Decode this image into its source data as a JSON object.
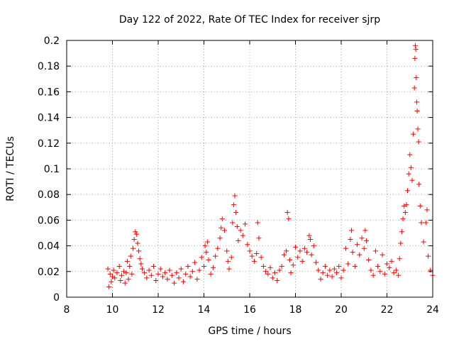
{
  "chart_data": {
    "type": "scatter",
    "title": "Day 122 of 2022, Rate Of TEC Index for receiver sjrp",
    "xlabel": "GPS time / hours",
    "ylabel": "ROTI / TECUs",
    "xlim": [
      8,
      24
    ],
    "ylim": [
      0,
      0.2
    ],
    "x_ticks": [
      8,
      10,
      12,
      14,
      16,
      18,
      20,
      22,
      24
    ],
    "x_tick_labels": [
      "8",
      "10",
      "12",
      "14",
      "16",
      "18",
      "20",
      "22",
      "24"
    ],
    "y_ticks": [
      0,
      0.02,
      0.04,
      0.06,
      0.08,
      0.1,
      0.12,
      0.14,
      0.16,
      0.18,
      0.2
    ],
    "y_tick_labels": [
      "0",
      "0.02",
      "0.04",
      "0.06",
      "0.08",
      "0.1",
      "0.12",
      "0.14",
      "0.16",
      "0.18",
      "0.2"
    ],
    "grid": true,
    "marker": "+",
    "color": "#ff0000",
    "series": [
      {
        "name": "ROTI",
        "points": [
          [
            9.8,
            0.022
          ],
          [
            9.85,
            0.008
          ],
          [
            9.9,
            0.018
          ],
          [
            9.95,
            0.012
          ],
          [
            10.0,
            0.016
          ],
          [
            10.05,
            0.021
          ],
          [
            10.1,
            0.015
          ],
          [
            10.2,
            0.019
          ],
          [
            10.3,
            0.024
          ],
          [
            10.35,
            0.013
          ],
          [
            10.4,
            0.017
          ],
          [
            10.5,
            0.02
          ],
          [
            10.55,
            0.011
          ],
          [
            10.6,
            0.019
          ],
          [
            10.65,
            0.028
          ],
          [
            10.7,
            0.014
          ],
          [
            10.75,
            0.024
          ],
          [
            10.8,
            0.032
          ],
          [
            10.85,
            0.018
          ],
          [
            10.9,
            0.038
          ],
          [
            10.95,
            0.045
          ],
          [
            11.0,
            0.051
          ],
          [
            11.05,
            0.049
          ],
          [
            11.1,
            0.042
          ],
          [
            11.15,
            0.036
          ],
          [
            11.2,
            0.03
          ],
          [
            11.25,
            0.026
          ],
          [
            11.3,
            0.022
          ],
          [
            11.4,
            0.019
          ],
          [
            11.5,
            0.015
          ],
          [
            11.6,
            0.021
          ],
          [
            11.7,
            0.017
          ],
          [
            11.8,
            0.024
          ],
          [
            11.9,
            0.013
          ],
          [
            12.0,
            0.018
          ],
          [
            12.1,
            0.022
          ],
          [
            12.2,
            0.016
          ],
          [
            12.3,
            0.019
          ],
          [
            12.4,
            0.014
          ],
          [
            12.5,
            0.021
          ],
          [
            12.6,
            0.017
          ],
          [
            12.7,
            0.011
          ],
          [
            12.8,
            0.019
          ],
          [
            12.9,
            0.015
          ],
          [
            13.0,
            0.022
          ],
          [
            13.1,
            0.012
          ],
          [
            13.2,
            0.018
          ],
          [
            13.3,
            0.024
          ],
          [
            13.4,
            0.016
          ],
          [
            13.5,
            0.02
          ],
          [
            13.6,
            0.027
          ],
          [
            13.7,
            0.014
          ],
          [
            13.8,
            0.021
          ],
          [
            13.9,
            0.031
          ],
          [
            14.0,
            0.024
          ],
          [
            14.05,
            0.04
          ],
          [
            14.1,
            0.035
          ],
          [
            14.15,
            0.043
          ],
          [
            14.2,
            0.029
          ],
          [
            14.3,
            0.018
          ],
          [
            14.4,
            0.023
          ],
          [
            14.5,
            0.032
          ],
          [
            14.6,
            0.038
          ],
          [
            14.7,
            0.046
          ],
          [
            14.75,
            0.054
          ],
          [
            14.8,
            0.061
          ],
          [
            14.9,
            0.052
          ],
          [
            15.0,
            0.036
          ],
          [
            15.05,
            0.028
          ],
          [
            15.1,
            0.022
          ],
          [
            15.2,
            0.031
          ],
          [
            15.25,
            0.058
          ],
          [
            15.3,
            0.072
          ],
          [
            15.35,
            0.079
          ],
          [
            15.4,
            0.066
          ],
          [
            15.45,
            0.055
          ],
          [
            15.5,
            0.044
          ],
          [
            15.6,
            0.052
          ],
          [
            15.7,
            0.048
          ],
          [
            15.8,
            0.057
          ],
          [
            15.9,
            0.041
          ],
          [
            16.0,
            0.036
          ],
          [
            16.1,
            0.032
          ],
          [
            16.2,
            0.028
          ],
          [
            16.3,
            0.034
          ],
          [
            16.35,
            0.058
          ],
          [
            16.4,
            0.046
          ],
          [
            16.5,
            0.031
          ],
          [
            16.6,
            0.024
          ],
          [
            16.7,
            0.02
          ],
          [
            16.8,
            0.018
          ],
          [
            16.9,
            0.023
          ],
          [
            17.0,
            0.015
          ],
          [
            17.1,
            0.019
          ],
          [
            17.2,
            0.013
          ],
          [
            17.3,
            0.021
          ],
          [
            17.4,
            0.024
          ],
          [
            17.5,
            0.033
          ],
          [
            17.6,
            0.036
          ],
          [
            17.65,
            0.066
          ],
          [
            17.7,
            0.061
          ],
          [
            17.75,
            0.029
          ],
          [
            17.8,
            0.019
          ],
          [
            17.9,
            0.025
          ],
          [
            18.0,
            0.039
          ],
          [
            18.1,
            0.031
          ],
          [
            18.2,
            0.036
          ],
          [
            18.3,
            0.028
          ],
          [
            18.4,
            0.038
          ],
          [
            18.5,
            0.035
          ],
          [
            18.6,
            0.048
          ],
          [
            18.65,
            0.045
          ],
          [
            18.7,
            0.033
          ],
          [
            18.8,
            0.04
          ],
          [
            18.9,
            0.027
          ],
          [
            19.0,
            0.021
          ],
          [
            19.1,
            0.014
          ],
          [
            19.2,
            0.019
          ],
          [
            19.3,
            0.024
          ],
          [
            19.4,
            0.017
          ],
          [
            19.5,
            0.021
          ],
          [
            19.6,
            0.016
          ],
          [
            19.7,
            0.022
          ],
          [
            19.8,
            0.019
          ],
          [
            19.9,
            0.024
          ],
          [
            20.0,
            0.015
          ],
          [
            20.1,
            0.021
          ],
          [
            20.2,
            0.038
          ],
          [
            20.3,
            0.026
          ],
          [
            20.4,
            0.045
          ],
          [
            20.45,
            0.052
          ],
          [
            20.5,
            0.035
          ],
          [
            20.6,
            0.024
          ],
          [
            20.7,
            0.041
          ],
          [
            20.8,
            0.033
          ],
          [
            20.9,
            0.046
          ],
          [
            21.0,
            0.038
          ],
          [
            21.05,
            0.052
          ],
          [
            21.1,
            0.044
          ],
          [
            21.2,
            0.029
          ],
          [
            21.3,
            0.021
          ],
          [
            21.4,
            0.017
          ],
          [
            21.5,
            0.036
          ],
          [
            21.6,
            0.024
          ],
          [
            21.7,
            0.02
          ],
          [
            21.8,
            0.033
          ],
          [
            21.9,
            0.018
          ],
          [
            22.0,
            0.026
          ],
          [
            22.1,
            0.023
          ],
          [
            22.2,
            0.028
          ],
          [
            22.3,
            0.019
          ],
          [
            22.4,
            0.021
          ],
          [
            22.5,
            0.017
          ],
          [
            22.55,
            0.03
          ],
          [
            22.6,
            0.042
          ],
          [
            22.65,
            0.051
          ],
          [
            22.7,
            0.061
          ],
          [
            22.75,
            0.071
          ],
          [
            22.8,
            0.066
          ],
          [
            22.85,
            0.072
          ],
          [
            22.9,
            0.083
          ],
          [
            22.95,
            0.096
          ],
          [
            23.0,
            0.111
          ],
          [
            23.05,
            0.101
          ],
          [
            23.1,
            0.091
          ],
          [
            23.15,
            0.127
          ],
          [
            23.2,
            0.163
          ],
          [
            23.22,
            0.186
          ],
          [
            23.24,
            0.196
          ],
          [
            23.26,
            0.193
          ],
          [
            23.28,
            0.171
          ],
          [
            23.3,
            0.152
          ],
          [
            23.32,
            0.145
          ],
          [
            23.35,
            0.131
          ],
          [
            23.38,
            0.121
          ],
          [
            23.4,
            0.088
          ],
          [
            23.45,
            0.071
          ],
          [
            23.5,
            0.058
          ],
          [
            23.6,
            0.043
          ],
          [
            23.7,
            0.058
          ],
          [
            23.75,
            0.068
          ],
          [
            23.8,
            0.032
          ],
          [
            23.9,
            0.021
          ],
          [
            24.0,
            0.017
          ]
        ]
      }
    ]
  }
}
